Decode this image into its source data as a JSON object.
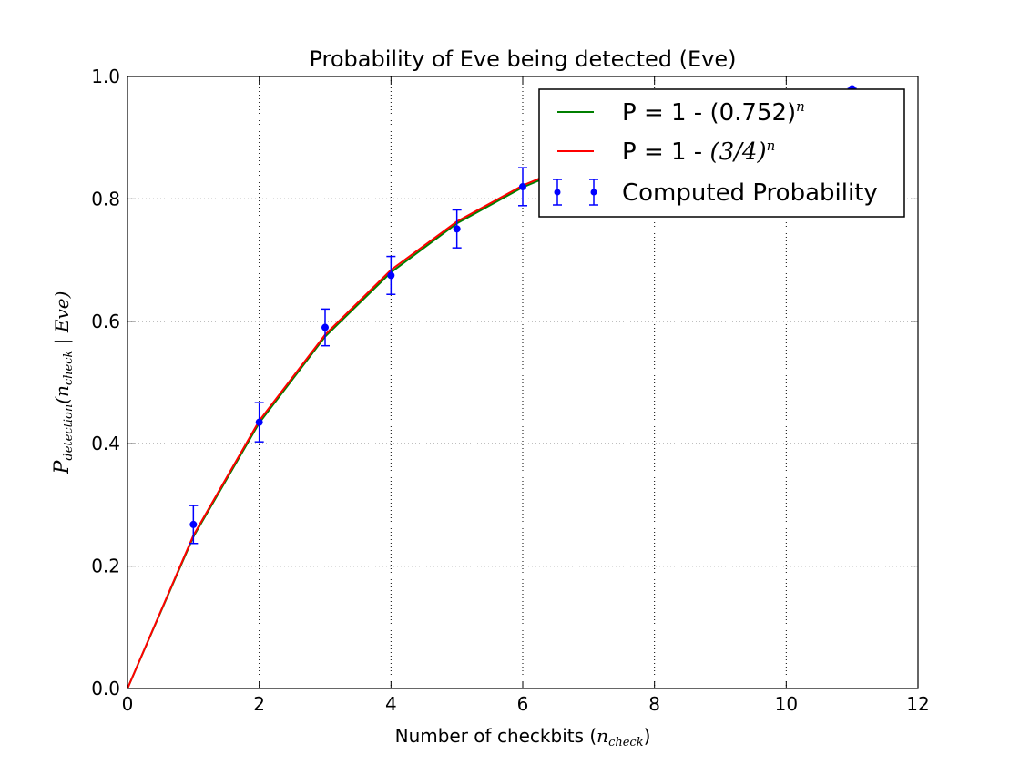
{
  "chart_data": {
    "type": "line",
    "title": "Probability of Eve being detected (Eve)",
    "xlabel": {
      "prefix": "Number of checkbits (",
      "var": "n",
      "sub": "check",
      "suffix": ")"
    },
    "ylabel": {
      "var": "P",
      "sub": "detection",
      "mid": "(",
      "var2": "n",
      "sub2": "check",
      "rest": " | Eve)"
    },
    "xlim": [
      0,
      12
    ],
    "ylim": [
      0.0,
      1.0
    ],
    "xticks": [
      0,
      2,
      4,
      6,
      8,
      10,
      12
    ],
    "yticks": [
      0.0,
      0.2,
      0.4,
      0.6,
      0.8,
      1.0
    ],
    "xtick_labels": [
      "0",
      "2",
      "4",
      "6",
      "8",
      "10",
      "12"
    ],
    "ytick_labels": [
      "0.0",
      "0.2",
      "0.4",
      "0.6",
      "0.8",
      "1.0"
    ],
    "grid": true,
    "legend_position": "top-right",
    "series": [
      {
        "name": "P = 1 - (0.752)",
        "name_exp": "n",
        "kind": "line",
        "color": "#007f00",
        "x": [
          0,
          1,
          2,
          3,
          4,
          5,
          6,
          7,
          8,
          9,
          10,
          11
        ],
        "y": [
          0.0,
          0.248,
          0.434,
          0.575,
          0.68,
          0.76,
          0.819,
          0.864,
          0.898,
          0.923,
          0.942,
          0.957
        ]
      },
      {
        "name": "P = 1 - ",
        "name_math": "(3/4)",
        "name_exp": "n",
        "kind": "line",
        "color": "#ff0000",
        "x": [
          0,
          1,
          2,
          3,
          4,
          5,
          6,
          7,
          8,
          9,
          10,
          11
        ],
        "y": [
          0.0,
          0.25,
          0.4375,
          0.578,
          0.684,
          0.763,
          0.822,
          0.867,
          0.9,
          0.925,
          0.944,
          0.958
        ]
      },
      {
        "name": "Computed Probability",
        "kind": "errorbar",
        "color": "#0000ff",
        "x": [
          1,
          2,
          3,
          4,
          5,
          6,
          11
        ],
        "y": [
          0.268,
          0.435,
          0.59,
          0.675,
          0.751,
          0.82,
          0.98
        ],
        "yerr": [
          0.031,
          0.032,
          0.03,
          0.031,
          0.031,
          0.031,
          0.0
        ]
      }
    ]
  }
}
